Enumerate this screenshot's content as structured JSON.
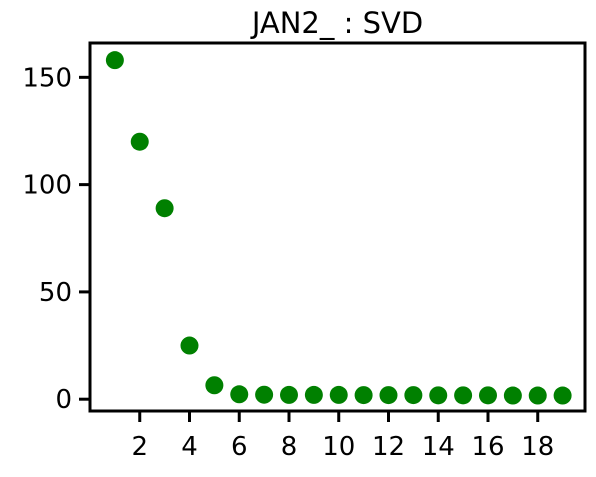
{
  "chart_data": {
    "type": "scatter",
    "title": "JAN2_ : SVD",
    "xlabel": "",
    "ylabel": "",
    "x": [
      1,
      2,
      3,
      4,
      5,
      6,
      7,
      8,
      9,
      10,
      11,
      12,
      13,
      14,
      15,
      16,
      17,
      18,
      19
    ],
    "series": [
      {
        "values": [
          158,
          120,
          89,
          25,
          6.5,
          2.3,
          2.1,
          2.0,
          2.0,
          2.0,
          1.9,
          1.9,
          1.9,
          1.8,
          1.8,
          1.8,
          1.7,
          1.7,
          1.7
        ],
        "color": "#008000"
      }
    ],
    "xticks": [
      2,
      4,
      6,
      8,
      10,
      12,
      14,
      16,
      18
    ],
    "yticks": [
      0,
      50,
      100,
      150
    ],
    "xlim": [
      0.0,
      19.9
    ],
    "ylim": [
      -5.5,
      166
    ],
    "grid": false,
    "legend": "none"
  }
}
